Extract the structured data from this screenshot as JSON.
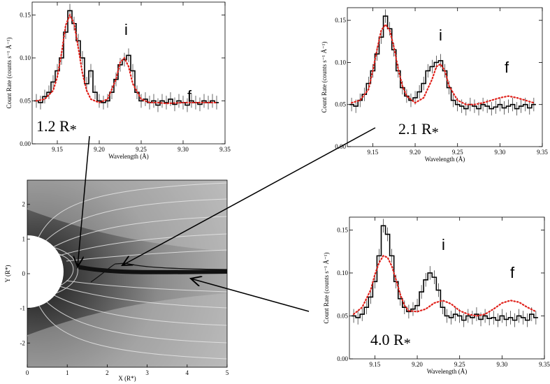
{
  "chart_data": [
    {
      "type": "line",
      "title": "",
      "xlabel": "Wavelength (Å)",
      "ylabel": "Count Rate (counts s⁻¹ Å⁻¹)",
      "xlim": [
        9.12,
        9.35
      ],
      "ylim": [
        0.0,
        0.165
      ],
      "xticks": [
        "9.15",
        "9.20",
        "9.25",
        "9.30",
        "9.35"
      ],
      "yticks": [
        "0.00",
        "0.05",
        "0.10",
        "0.15"
      ],
      "annotations": [
        "i",
        "f"
      ],
      "radius_label": "1.2 R",
      "radius_sub": "*",
      "series": [
        {
          "style": "black-histogram",
          "x": [
            9.125,
            9.13,
            9.135,
            9.14,
            9.145,
            9.15,
            9.155,
            9.16,
            9.165,
            9.17,
            9.175,
            9.18,
            9.185,
            9.19,
            9.195,
            9.2,
            9.205,
            9.21,
            9.215,
            9.22,
            9.225,
            9.23,
            9.235,
            9.24,
            9.245,
            9.25,
            9.255,
            9.26,
            9.265,
            9.27,
            9.275,
            9.28,
            9.285,
            9.29,
            9.295,
            9.3,
            9.305,
            9.31,
            9.315,
            9.32,
            9.325,
            9.33,
            9.335,
            9.34
          ],
          "y": [
            0.05,
            0.048,
            0.055,
            0.06,
            0.072,
            0.085,
            0.1,
            0.13,
            0.155,
            0.14,
            0.12,
            0.1,
            0.07,
            0.085,
            0.06,
            0.05,
            0.048,
            0.05,
            0.06,
            0.075,
            0.092,
            0.098,
            0.103,
            0.085,
            0.06,
            0.05,
            0.052,
            0.048,
            0.05,
            0.045,
            0.05,
            0.048,
            0.052,
            0.046,
            0.05,
            0.048,
            0.045,
            0.05,
            0.048,
            0.046,
            0.05,
            0.048,
            0.05,
            0.048
          ]
        },
        {
          "style": "red-dotted-model",
          "x": [
            9.125,
            9.135,
            9.145,
            9.15,
            9.155,
            9.16,
            9.165,
            9.17,
            9.175,
            9.18,
            9.185,
            9.19,
            9.2,
            9.21,
            9.22,
            9.225,
            9.23,
            9.235,
            9.24,
            9.25,
            9.26,
            9.27,
            9.28,
            9.3,
            9.32,
            9.34
          ],
          "y": [
            0.05,
            0.052,
            0.062,
            0.078,
            0.105,
            0.138,
            0.15,
            0.14,
            0.112,
            0.082,
            0.062,
            0.052,
            0.048,
            0.052,
            0.075,
            0.095,
            0.1,
            0.09,
            0.07,
            0.052,
            0.048,
            0.048,
            0.047,
            0.048,
            0.048,
            0.048
          ]
        }
      ]
    },
    {
      "type": "line",
      "title": "",
      "xlabel": "Wavelength (Å)",
      "ylabel": "Count Rate (counts s⁻¹ Å⁻¹)",
      "xlim": [
        9.12,
        9.35
      ],
      "ylim": [
        0.0,
        0.165
      ],
      "xticks": [
        "9.15",
        "9.20",
        "9.25",
        "9.30",
        "9.35"
      ],
      "yticks": [
        "0.00",
        "0.05",
        "0.10",
        "0.15"
      ],
      "annotations": [
        "i",
        "f"
      ],
      "radius_label": "2.1 R",
      "radius_sub": "*",
      "series": [
        {
          "style": "black-histogram",
          "x": [
            9.125,
            9.13,
            9.135,
            9.14,
            9.145,
            9.15,
            9.155,
            9.16,
            9.165,
            9.17,
            9.175,
            9.18,
            9.185,
            9.19,
            9.195,
            9.2,
            9.205,
            9.21,
            9.215,
            9.22,
            9.225,
            9.23,
            9.235,
            9.24,
            9.245,
            9.25,
            9.255,
            9.26,
            9.265,
            9.27,
            9.275,
            9.28,
            9.285,
            9.29,
            9.295,
            9.3,
            9.305,
            9.31,
            9.315,
            9.32,
            9.325,
            9.33,
            9.335,
            9.34
          ],
          "y": [
            0.05,
            0.048,
            0.055,
            0.062,
            0.075,
            0.09,
            0.11,
            0.13,
            0.155,
            0.14,
            0.115,
            0.09,
            0.07,
            0.06,
            0.055,
            0.058,
            0.065,
            0.075,
            0.09,
            0.095,
            0.1,
            0.102,
            0.09,
            0.07,
            0.055,
            0.05,
            0.048,
            0.045,
            0.05,
            0.048,
            0.045,
            0.05,
            0.048,
            0.045,
            0.047,
            0.05,
            0.046,
            0.048,
            0.05,
            0.045,
            0.048,
            0.05,
            0.046,
            0.05
          ]
        },
        {
          "style": "red-dotted-model",
          "x": [
            9.125,
            9.135,
            9.145,
            9.15,
            9.155,
            9.16,
            9.165,
            9.17,
            9.175,
            9.18,
            9.185,
            9.19,
            9.2,
            9.21,
            9.22,
            9.225,
            9.23,
            9.235,
            9.24,
            9.25,
            9.26,
            9.27,
            9.28,
            9.29,
            9.3,
            9.31,
            9.32,
            9.33,
            9.34
          ],
          "y": [
            0.052,
            0.055,
            0.068,
            0.09,
            0.115,
            0.138,
            0.145,
            0.138,
            0.118,
            0.092,
            0.072,
            0.06,
            0.052,
            0.058,
            0.08,
            0.095,
            0.098,
            0.09,
            0.072,
            0.055,
            0.05,
            0.05,
            0.052,
            0.055,
            0.058,
            0.06,
            0.058,
            0.055,
            0.052
          ]
        }
      ]
    },
    {
      "type": "line",
      "title": "",
      "xlabel": "Wavelength (Å)",
      "ylabel": "Count Rate (counts s⁻¹ Å⁻¹)",
      "xlim": [
        9.12,
        9.35
      ],
      "ylim": [
        0.0,
        0.165
      ],
      "xticks": [
        "9.15",
        "9.20",
        "9.25",
        "9.30",
        "9.35"
      ],
      "yticks": [
        "0.00",
        "0.05",
        "0.10",
        "0.15"
      ],
      "annotations": [
        "i",
        "f"
      ],
      "radius_label": "4.0 R",
      "radius_sub": "*",
      "series": [
        {
          "style": "black-histogram",
          "x": [
            9.125,
            9.13,
            9.135,
            9.14,
            9.145,
            9.15,
            9.155,
            9.16,
            9.165,
            9.17,
            9.175,
            9.18,
            9.185,
            9.19,
            9.195,
            9.2,
            9.205,
            9.21,
            9.215,
            9.22,
            9.225,
            9.23,
            9.235,
            9.24,
            9.245,
            9.25,
            9.255,
            9.26,
            9.265,
            9.27,
            9.275,
            9.28,
            9.285,
            9.29,
            9.295,
            9.3,
            9.305,
            9.31,
            9.315,
            9.32,
            9.325,
            9.33,
            9.335,
            9.34
          ],
          "y": [
            0.05,
            0.048,
            0.052,
            0.06,
            0.072,
            0.09,
            0.12,
            0.155,
            0.145,
            0.12,
            0.09,
            0.07,
            0.06,
            0.055,
            0.058,
            0.062,
            0.078,
            0.092,
            0.1,
            0.095,
            0.08,
            0.06,
            0.05,
            0.048,
            0.052,
            0.05,
            0.045,
            0.05,
            0.048,
            0.052,
            0.046,
            0.05,
            0.047,
            0.048,
            0.045,
            0.05,
            0.046,
            0.048,
            0.045,
            0.05,
            0.048,
            0.045,
            0.052,
            0.048
          ]
        },
        {
          "style": "red-dotted-model",
          "x": [
            9.125,
            9.135,
            9.145,
            9.15,
            9.155,
            9.16,
            9.165,
            9.17,
            9.175,
            9.18,
            9.185,
            9.19,
            9.2,
            9.21,
            9.22,
            9.23,
            9.24,
            9.25,
            9.26,
            9.27,
            9.28,
            9.29,
            9.3,
            9.31,
            9.32,
            9.33,
            9.34
          ],
          "y": [
            0.052,
            0.06,
            0.08,
            0.098,
            0.112,
            0.12,
            0.118,
            0.108,
            0.092,
            0.075,
            0.062,
            0.056,
            0.055,
            0.058,
            0.065,
            0.068,
            0.064,
            0.056,
            0.052,
            0.05,
            0.052,
            0.058,
            0.065,
            0.068,
            0.066,
            0.06,
            0.055
          ]
        }
      ]
    }
  ],
  "image_panel": {
    "xlabel": "X (R*)",
    "ylabel": "Y (R*)",
    "xticks": [
      "0",
      "1",
      "2",
      "3",
      "4",
      "5"
    ],
    "yticks": [
      "2",
      "1",
      "0",
      "-1",
      "-2"
    ]
  }
}
